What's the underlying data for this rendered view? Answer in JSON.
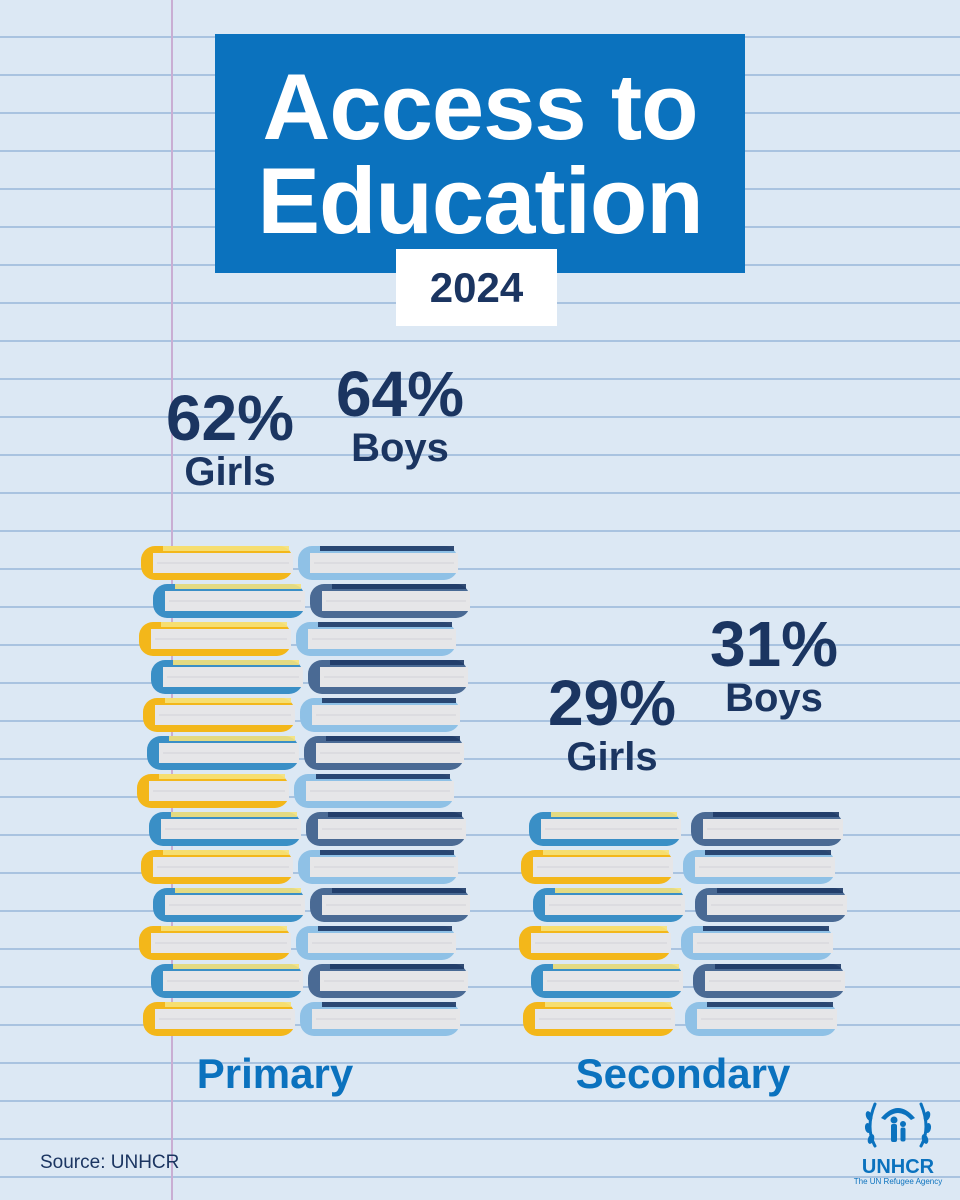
{
  "title": {
    "line1": "Access to",
    "line2": "Education"
  },
  "year": "2024",
  "chart_data": {
    "type": "bar",
    "title": "Access to Education",
    "subtitle": "2024",
    "categories": [
      "Primary",
      "Secondary"
    ],
    "series": [
      {
        "name": "Girls",
        "values": [
          62,
          29
        ],
        "labels": [
          "62%",
          "29%"
        ]
      },
      {
        "name": "Boys",
        "values": [
          64,
          31
        ],
        "labels": [
          "64%",
          "31%"
        ]
      }
    ],
    "unit": "%",
    "ylim": [
      0,
      100
    ],
    "colors": {
      "girls_cover": [
        "#f3b71a",
        "#3a8fc6"
      ],
      "boys_cover": [
        "#8fc1e6",
        "#4a6a94"
      ],
      "pages": "#e6e6e8",
      "girls_highlight": "#f6e27a",
      "boys_highlight": "#1e3a66"
    }
  },
  "source": "Source: UNHCR",
  "logo": {
    "name": "UNHCR",
    "tagline": "The UN Refugee Agency",
    "icon": "unhcr-emblem-icon"
  }
}
